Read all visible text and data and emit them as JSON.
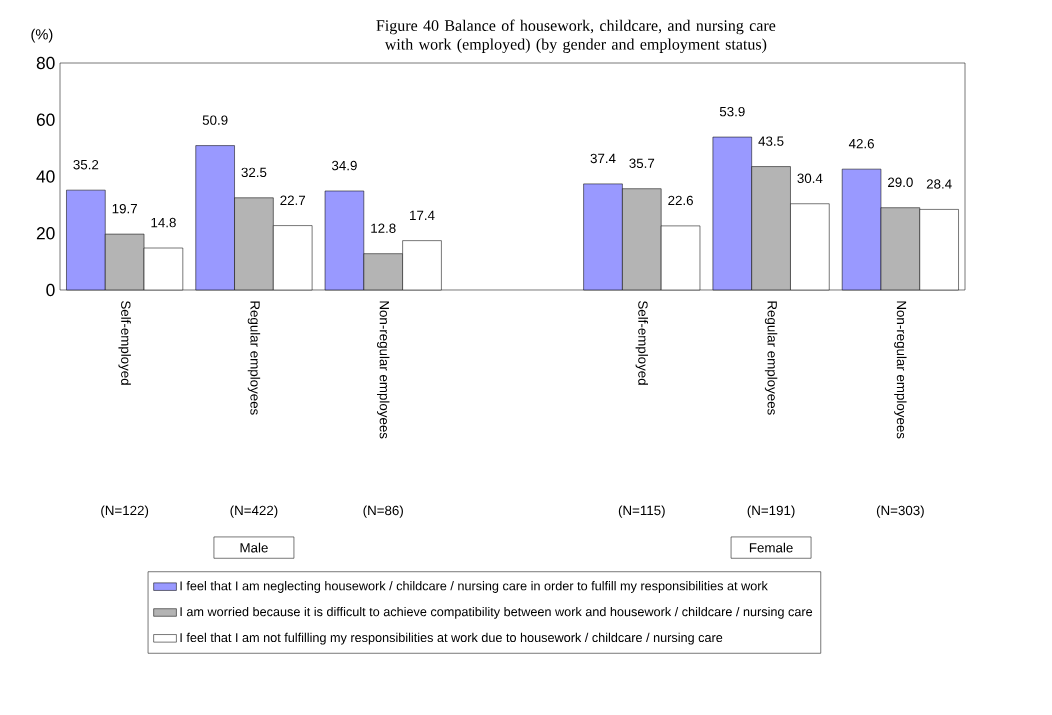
{
  "chart_data": {
    "type": "bar",
    "title": "Figure 40  Balance of housework, childcare, and nursing care with work (employed) (by gender and employment status)",
    "ylabel": "(%)",
    "categories": [
      "Self-employed",
      "Regular employees",
      "Non-regular employees",
      null,
      "Self-employed",
      "Regular employees",
      "Non-regular employees"
    ],
    "series": [
      {
        "name": "I feel that I am neglecting housework / childcare / nursing care in order to fulfill my responsibilities at work",
        "color": "#9999ff",
        "values": [
          35.2,
          50.9,
          34.9,
          null,
          37.4,
          53.9,
          42.6
        ],
        "value_labels": [
          "35.2",
          "50.9",
          "34.9",
          null,
          "37.4",
          "53.9",
          "42.6"
        ]
      },
      {
        "name": "I am worried because it is difficult to achieve compatibility between work and housework / childcare / nursing care",
        "color": "#b4b4b4",
        "values": [
          19.7,
          32.5,
          12.8,
          null,
          35.7,
          43.5,
          29.0
        ],
        "value_labels": [
          "19.7",
          "32.5",
          "12.8",
          null,
          "35.7",
          "43.5",
          "29.0"
        ]
      },
      {
        "name": "I feel that I am not fulfilling my responsibilities at work due to housework / childcare / nursing care",
        "color": "#ffffff",
        "values": [
          14.8,
          22.7,
          17.4,
          null,
          22.6,
          30.4,
          28.4
        ],
        "value_labels": [
          "14.8",
          "22.7",
          "17.4",
          null,
          "22.6",
          "30.4",
          "28.4"
        ]
      }
    ],
    "annotations": [
      "(N=122)",
      "(N=422)",
      "(N=86)",
      "(N=115)",
      "(N=191)",
      "(N=303)",
      "Male",
      "Female"
    ],
    "ylim": [
      0,
      80
    ],
    "yticks": [
      0,
      20,
      40,
      60,
      80
    ],
    "legend": "bottom"
  }
}
